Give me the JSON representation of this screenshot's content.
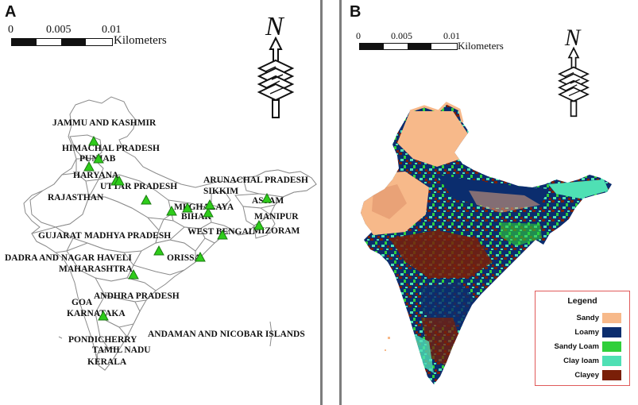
{
  "panel_a": {
    "letter": "A",
    "scale": {
      "ticks": [
        "0",
        "0.005",
        "0.01"
      ],
      "unit": "Kilometers"
    },
    "north_label": "N",
    "states": [
      "JAMMU AND KASHMIR",
      "HIMACHAL PRADESH",
      "PUNJAB",
      "HARYANA",
      "UTTAR PRADESH",
      "RAJASTHAN",
      "ARUNACHAL PRADESH",
      "SIKKIM",
      "ASSAM",
      "MEGHALAYA",
      "BIHAR",
      "MANIPUR",
      "GUJARAT",
      "MADHYA PRADESH",
      "WEST BENGAL",
      "MIZORAM",
      "DADRA AND NAGAR HAVELI",
      "ORISSA",
      "MAHARASHTRA",
      "ANDHRA PRADESH",
      "GOA",
      "KARNATAKA",
      "ANDAMAN AND NICOBAR ISLANDS",
      "PONDICHERRY",
      "TAMIL NADU",
      "KERALA"
    ],
    "site_marker_color": "#2ecc1a",
    "site_count": 17
  },
  "panel_b": {
    "letter": "B",
    "scale": {
      "ticks": [
        "0",
        "0.005",
        "0.01"
      ],
      "unit": "Kilometers"
    },
    "north_label": "N",
    "legend": {
      "title": "Legend",
      "items": [
        {
          "label": "Sandy",
          "color": "#f7b98a"
        },
        {
          "label": "Loamy",
          "color": "#0b2d6e"
        },
        {
          "label": "Sandy Loam",
          "color": "#2fcf3a"
        },
        {
          "label": "Clay loam",
          "color": "#4fe0b4"
        },
        {
          "label": "Clayey",
          "color": "#7a1f08"
        }
      ]
    }
  }
}
